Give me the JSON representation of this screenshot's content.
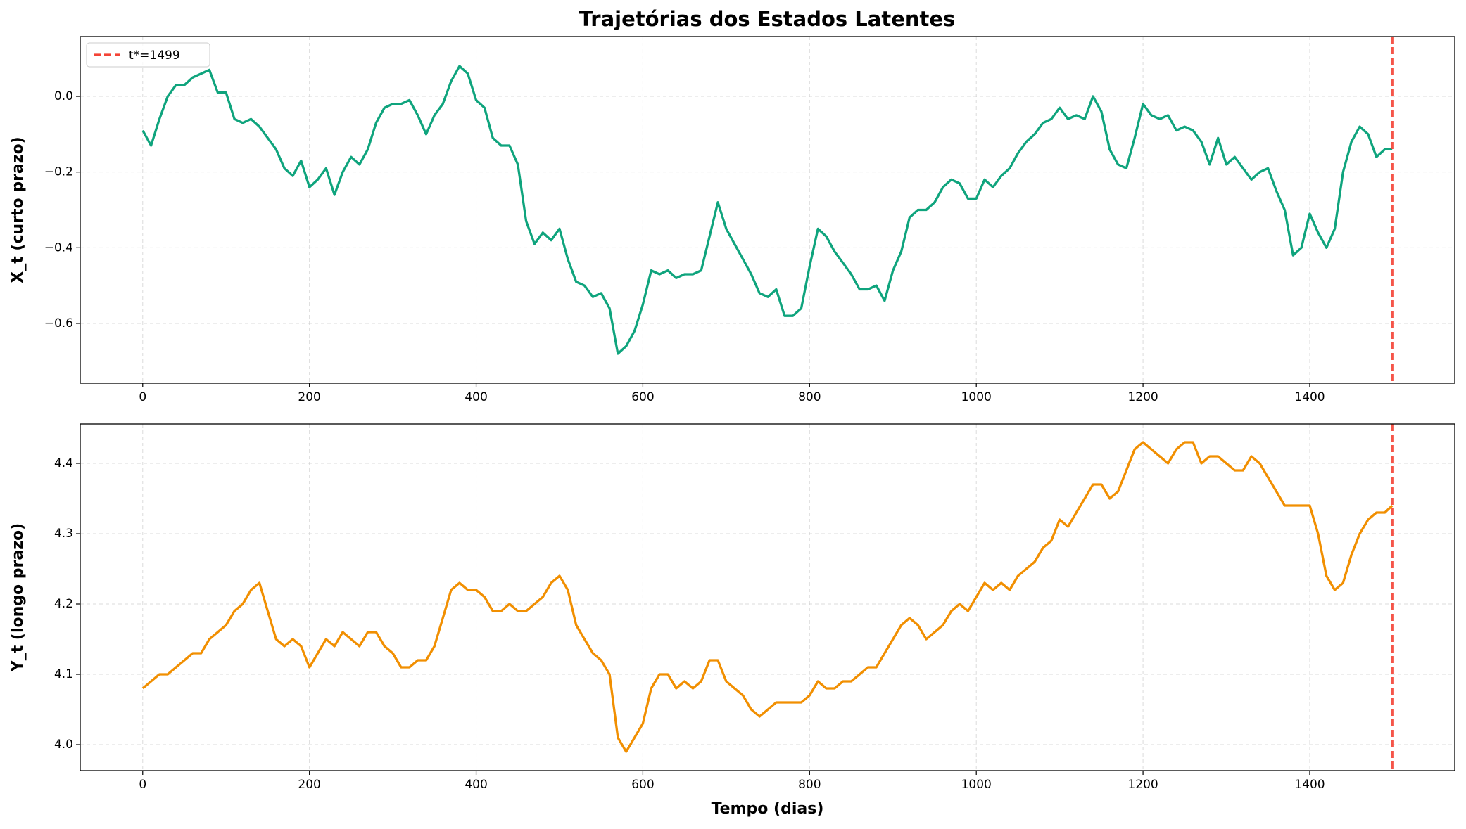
{
  "chart_data": [
    {
      "type": "line",
      "title": "Trajetórias dos Estados Latentes",
      "ylabel": "X_t (curto prazo)",
      "x": [
        0,
        10,
        20,
        30,
        40,
        50,
        60,
        70,
        80,
        90,
        100,
        110,
        120,
        130,
        140,
        150,
        160,
        170,
        180,
        190,
        200,
        210,
        220,
        230,
        240,
        250,
        260,
        270,
        280,
        290,
        300,
        310,
        320,
        330,
        340,
        350,
        360,
        370,
        380,
        390,
        400,
        410,
        420,
        430,
        440,
        450,
        460,
        470,
        480,
        490,
        500,
        510,
        520,
        530,
        540,
        550,
        560,
        570,
        580,
        590,
        600,
        610,
        620,
        630,
        640,
        650,
        660,
        670,
        680,
        690,
        700,
        710,
        720,
        730,
        740,
        750,
        760,
        770,
        780,
        790,
        800,
        810,
        820,
        830,
        840,
        850,
        860,
        870,
        880,
        890,
        900,
        910,
        920,
        930,
        940,
        950,
        960,
        970,
        980,
        990,
        1000,
        1010,
        1020,
        1030,
        1040,
        1050,
        1060,
        1070,
        1080,
        1090,
        1100,
        1110,
        1120,
        1130,
        1140,
        1150,
        1160,
        1170,
        1180,
        1190,
        1200,
        1210,
        1220,
        1230,
        1240,
        1250,
        1260,
        1270,
        1280,
        1290,
        1300,
        1310,
        1320,
        1330,
        1340,
        1350,
        1360,
        1370,
        1380,
        1390,
        1400,
        1410,
        1420,
        1430,
        1440,
        1450,
        1460,
        1470,
        1480,
        1490,
        1499
      ],
      "series": [
        {
          "color": "#0fa47d",
          "values": [
            -0.09,
            -0.13,
            -0.06,
            0.0,
            0.03,
            0.03,
            0.05,
            0.06,
            0.07,
            0.01,
            0.01,
            -0.06,
            -0.07,
            -0.06,
            -0.08,
            -0.11,
            -0.14,
            -0.19,
            -0.21,
            -0.17,
            -0.24,
            -0.22,
            -0.19,
            -0.26,
            -0.2,
            -0.16,
            -0.18,
            -0.14,
            -0.07,
            -0.03,
            -0.02,
            -0.02,
            -0.01,
            -0.05,
            -0.1,
            -0.05,
            -0.02,
            0.04,
            0.08,
            0.06,
            -0.01,
            -0.03,
            -0.11,
            -0.13,
            -0.13,
            -0.18,
            -0.33,
            -0.39,
            -0.36,
            -0.38,
            -0.35,
            -0.43,
            -0.49,
            -0.5,
            -0.53,
            -0.52,
            -0.56,
            -0.68,
            -0.66,
            -0.62,
            -0.55,
            -0.46,
            -0.47,
            -0.46,
            -0.48,
            -0.47,
            -0.47,
            -0.46,
            -0.37,
            -0.28,
            -0.35,
            -0.39,
            -0.43,
            -0.47,
            -0.52,
            -0.53,
            -0.51,
            -0.58,
            -0.58,
            -0.56,
            -0.45,
            -0.35,
            -0.37,
            -0.41,
            -0.44,
            -0.47,
            -0.51,
            -0.51,
            -0.5,
            -0.54,
            -0.46,
            -0.41,
            -0.32,
            -0.3,
            -0.3,
            -0.28,
            -0.24,
            -0.22,
            -0.23,
            -0.27,
            -0.27,
            -0.22,
            -0.24,
            -0.21,
            -0.19,
            -0.15,
            -0.12,
            -0.1,
            -0.07,
            -0.06,
            -0.03,
            -0.06,
            -0.05,
            -0.06,
            0.0,
            -0.04,
            -0.14,
            -0.18,
            -0.19,
            -0.11,
            -0.02,
            -0.05,
            -0.06,
            -0.05,
            -0.09,
            -0.08,
            -0.09,
            -0.12,
            -0.18,
            -0.11,
            -0.18,
            -0.16,
            -0.19,
            -0.22,
            -0.2,
            -0.19,
            -0.25,
            -0.3,
            -0.42,
            -0.4,
            -0.31,
            -0.36,
            -0.4,
            -0.35,
            -0.2,
            -0.12,
            -0.08,
            -0.1,
            -0.16,
            -0.14,
            -0.14
          ]
        }
      ],
      "ref_line": {
        "x": 1499,
        "label": "t*=1499",
        "color": "#f44336"
      },
      "legend": "upper left",
      "xlim": [
        -74.95,
        1573.95
      ],
      "xticks": [
        0,
        200,
        400,
        600,
        800,
        1000,
        1200,
        1400
      ],
      "ylim": [
        -0.758,
        0.158
      ],
      "yticks": [
        {
          "value": -0.6,
          "label": "−0.6"
        },
        {
          "value": -0.4,
          "label": "−0.4"
        },
        {
          "value": -0.2,
          "label": "−0.2"
        },
        {
          "value": 0,
          "label": "0.0"
        }
      ],
      "grid": true
    },
    {
      "type": "line",
      "ylabel": "Y_t (longo prazo)",
      "xlabel": "Tempo (dias)",
      "x": [
        0,
        10,
        20,
        30,
        40,
        50,
        60,
        70,
        80,
        90,
        100,
        110,
        120,
        130,
        140,
        150,
        160,
        170,
        180,
        190,
        200,
        210,
        220,
        230,
        240,
        250,
        260,
        270,
        280,
        290,
        300,
        310,
        320,
        330,
        340,
        350,
        360,
        370,
        380,
        390,
        400,
        410,
        420,
        430,
        440,
        450,
        460,
        470,
        480,
        490,
        500,
        510,
        520,
        530,
        540,
        550,
        560,
        570,
        580,
        590,
        600,
        610,
        620,
        630,
        640,
        650,
        660,
        670,
        680,
        690,
        700,
        710,
        720,
        730,
        740,
        750,
        760,
        770,
        780,
        790,
        800,
        810,
        820,
        830,
        840,
        850,
        860,
        870,
        880,
        890,
        900,
        910,
        920,
        930,
        940,
        950,
        960,
        970,
        980,
        990,
        1000,
        1010,
        1020,
        1030,
        1040,
        1050,
        1060,
        1070,
        1080,
        1090,
        1100,
        1110,
        1120,
        1130,
        1140,
        1150,
        1160,
        1170,
        1180,
        1190,
        1200,
        1210,
        1220,
        1230,
        1240,
        1250,
        1260,
        1270,
        1280,
        1290,
        1300,
        1310,
        1320,
        1330,
        1340,
        1350,
        1360,
        1370,
        1380,
        1390,
        1400,
        1410,
        1420,
        1430,
        1440,
        1450,
        1460,
        1470,
        1480,
        1490,
        1499
      ],
      "series": [
        {
          "color": "#f18f01",
          "values": [
            4.08,
            4.09,
            4.1,
            4.1,
            4.11,
            4.12,
            4.13,
            4.13,
            4.15,
            4.16,
            4.17,
            4.19,
            4.2,
            4.22,
            4.23,
            4.19,
            4.15,
            4.14,
            4.15,
            4.14,
            4.11,
            4.13,
            4.15,
            4.14,
            4.16,
            4.15,
            4.14,
            4.16,
            4.16,
            4.14,
            4.13,
            4.11,
            4.11,
            4.12,
            4.12,
            4.14,
            4.18,
            4.22,
            4.23,
            4.22,
            4.22,
            4.21,
            4.19,
            4.19,
            4.2,
            4.19,
            4.19,
            4.2,
            4.21,
            4.23,
            4.24,
            4.22,
            4.17,
            4.15,
            4.13,
            4.12,
            4.1,
            4.01,
            3.99,
            4.01,
            4.03,
            4.08,
            4.1,
            4.1,
            4.08,
            4.09,
            4.08,
            4.09,
            4.12,
            4.12,
            4.09,
            4.08,
            4.07,
            4.05,
            4.04,
            4.05,
            4.06,
            4.06,
            4.06,
            4.06,
            4.07,
            4.09,
            4.08,
            4.08,
            4.09,
            4.09,
            4.1,
            4.11,
            4.11,
            4.13,
            4.15,
            4.17,
            4.18,
            4.17,
            4.15,
            4.16,
            4.17,
            4.19,
            4.2,
            4.19,
            4.21,
            4.23,
            4.22,
            4.23,
            4.22,
            4.24,
            4.25,
            4.26,
            4.28,
            4.29,
            4.32,
            4.31,
            4.33,
            4.35,
            4.37,
            4.37,
            4.35,
            4.36,
            4.39,
            4.42,
            4.43,
            4.42,
            4.41,
            4.4,
            4.42,
            4.43,
            4.43,
            4.4,
            4.41,
            4.41,
            4.4,
            4.39,
            4.39,
            4.41,
            4.4,
            4.38,
            4.36,
            4.34,
            4.34,
            4.34,
            4.34,
            4.3,
            4.24,
            4.22,
            4.23,
            4.27,
            4.3,
            4.32,
            4.33,
            4.33,
            4.34
          ]
        }
      ],
      "ref_line": {
        "x": 1499,
        "color": "#f44336"
      },
      "xlim": [
        -74.95,
        1573.95
      ],
      "xticks": [
        0,
        200,
        400,
        600,
        800,
        1000,
        1200,
        1400
      ],
      "ylim": [
        3.963,
        4.456
      ],
      "yticks": [
        {
          "value": 4.0,
          "label": "4.0"
        },
        4.1,
        4.2,
        4.3,
        4.4
      ],
      "grid": true
    }
  ]
}
